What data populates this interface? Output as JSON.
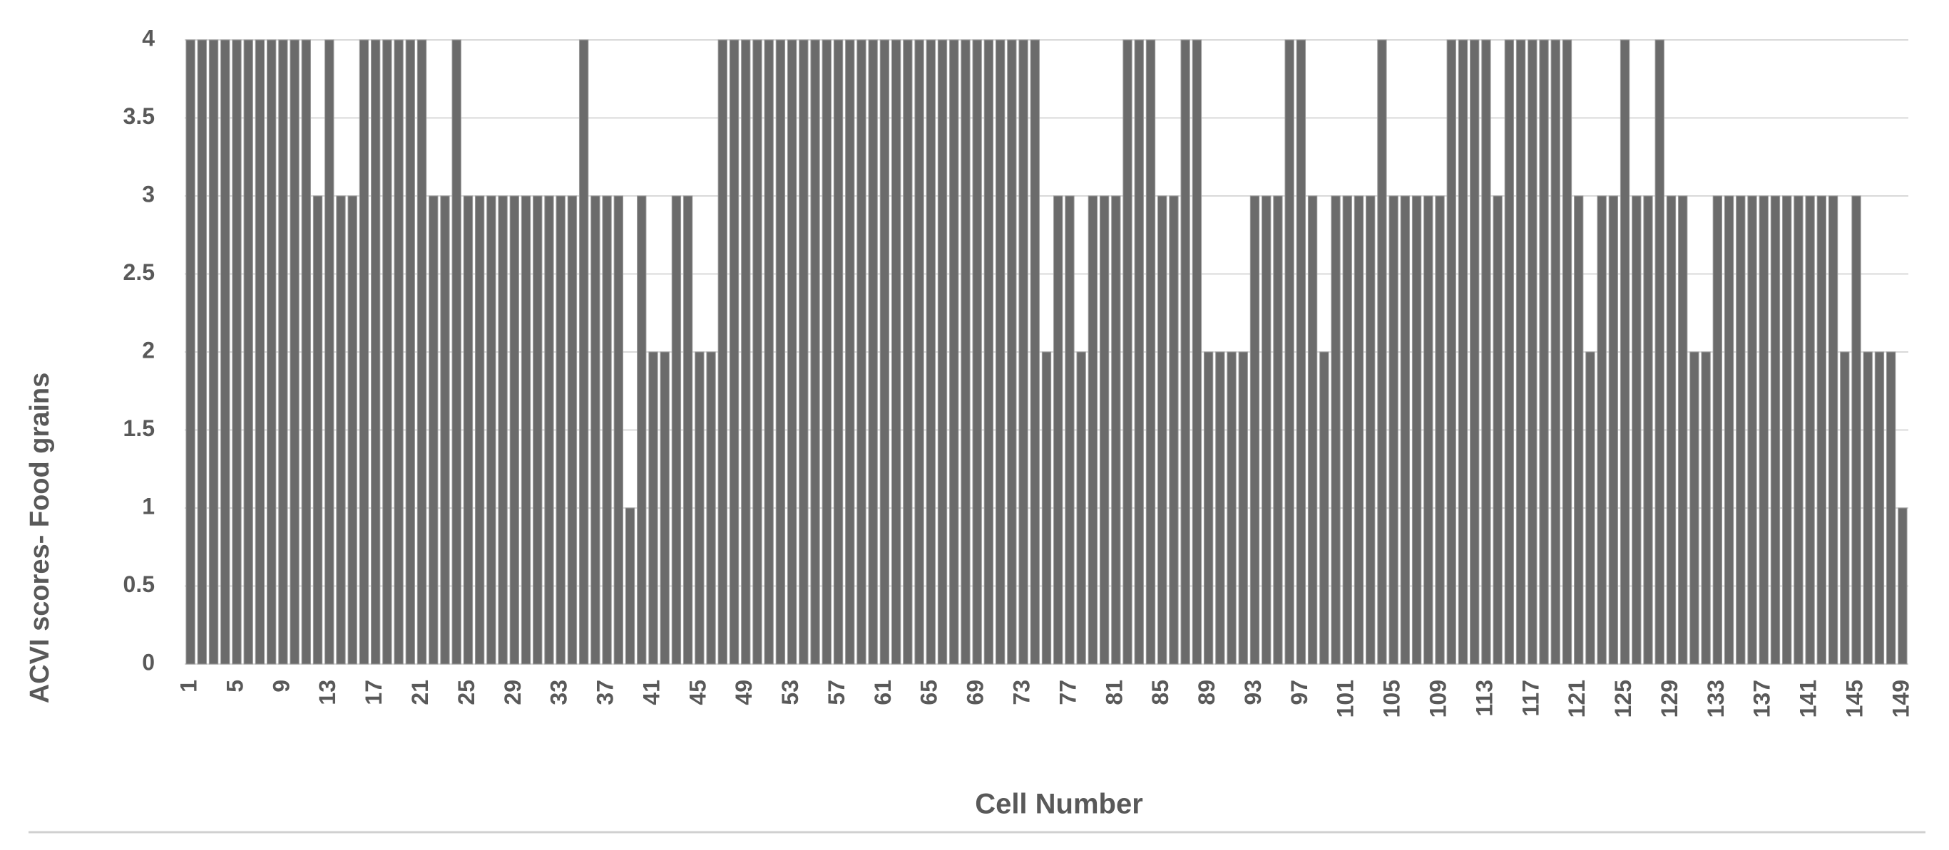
{
  "chart_data": {
    "type": "bar",
    "y_label": "ACVI scores- Food grains",
    "x_label": "Cell Number",
    "categories": [
      "1",
      null,
      null,
      null,
      "5",
      null,
      null,
      null,
      "9",
      null,
      null,
      null,
      "13",
      null,
      null,
      null,
      "17",
      null,
      null,
      null,
      "21",
      null,
      null,
      null,
      "25",
      null,
      null,
      null,
      "29",
      null,
      null,
      null,
      "33",
      null,
      null,
      null,
      "37",
      null,
      null,
      null,
      "41",
      null,
      null,
      null,
      "45",
      null,
      null,
      null,
      "49",
      null,
      null,
      null,
      "53",
      null,
      null,
      null,
      "57",
      null,
      null,
      null,
      "61",
      null,
      null,
      null,
      "65",
      null,
      null,
      null,
      "69",
      null,
      null,
      null,
      "73",
      null,
      null,
      null,
      "77",
      null,
      null,
      null,
      "81",
      null,
      null,
      null,
      "85",
      null,
      null,
      null,
      "89",
      null,
      null,
      null,
      "93",
      null,
      null,
      null,
      "97",
      null,
      null,
      null,
      "101",
      null,
      null,
      null,
      "105",
      null,
      null,
      null,
      "109",
      null,
      null,
      null,
      "113",
      null,
      null,
      null,
      "117",
      null,
      null,
      null,
      "121",
      null,
      null,
      null,
      "125",
      null,
      null,
      null,
      "129",
      null,
      null,
      null,
      "133",
      null,
      null,
      null,
      "137",
      null,
      null,
      null,
      "141",
      null,
      null,
      null,
      "145",
      null,
      null,
      null,
      "149"
    ],
    "values": [
      4,
      4,
      4,
      4,
      4,
      4,
      4,
      4,
      4,
      4,
      4,
      3,
      4,
      3,
      3,
      4,
      4,
      4,
      4,
      4,
      4,
      3,
      3,
      4,
      3,
      3,
      3,
      3,
      3,
      3,
      3,
      3,
      3,
      3,
      4,
      3,
      3,
      3,
      1,
      3,
      2,
      2,
      3,
      3,
      2,
      2,
      4,
      4,
      4,
      4,
      4,
      4,
      4,
      4,
      4,
      4,
      4,
      4,
      4,
      4,
      4,
      4,
      4,
      4,
      4,
      4,
      4,
      4,
      4,
      4,
      4,
      4,
      4,
      4,
      2,
      3,
      3,
      2,
      3,
      3,
      3,
      4,
      4,
      4,
      3,
      3,
      4,
      4,
      2,
      2,
      2,
      2,
      3,
      3,
      3,
      4,
      4,
      3,
      2,
      3,
      3,
      3,
      3,
      4,
      3,
      3,
      3,
      3,
      3,
      4,
      4,
      4,
      4,
      3,
      4,
      4,
      4,
      4,
      4,
      4,
      3,
      2,
      3,
      3,
      4,
      3,
      3,
      4,
      3,
      3,
      2,
      2,
      3,
      3,
      3,
      3,
      3,
      3,
      3,
      3,
      3,
      3,
      3,
      2,
      3,
      2,
      2,
      2,
      1
    ],
    "color": "#6b6b6b",
    "ylim": [
      0,
      4
    ],
    "yticks": [
      0,
      0.5,
      1,
      1.5,
      2,
      2.5,
      3,
      3.5,
      4
    ],
    "grid": true
  }
}
